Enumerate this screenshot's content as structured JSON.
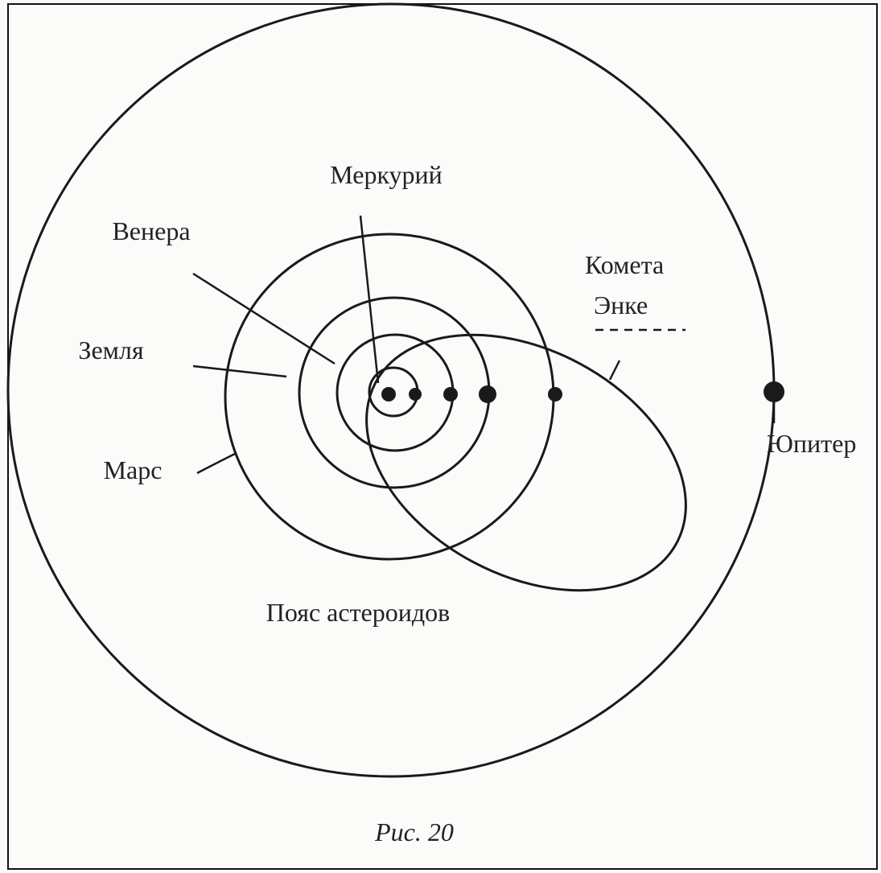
{
  "labels": [
    "Меркурий",
    "Венера",
    "Земля",
    "Марс",
    "Комета",
    "Энке",
    "Юпитер",
    "Пояс астероидов"
  ],
  "caption": "Рис. 20"
}
